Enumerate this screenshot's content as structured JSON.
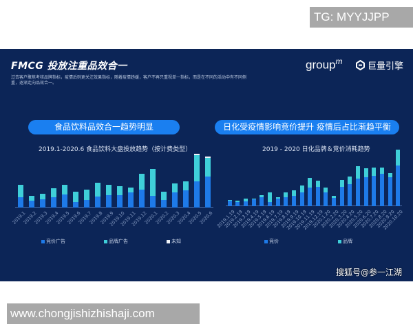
{
  "watermarks": {
    "top": "TG: MYYJJPP",
    "bottom": "www.chongjishizhishaji.com",
    "sohu": "搜狐号@参一江湖"
  },
  "slide": {
    "title": "FMCG 投放注重品效合一",
    "description": "过去客户聚焦考核品牌指标，疫情后则更关注效果指标，随着疫情趋缓，客户不再只重视单一指标，而是在不同的活动中有不同侧重，逐渐走向品效合一。",
    "logos": {
      "groupm": "group",
      "groupm_sup": "m",
      "juliang": "巨量引擎"
    }
  },
  "colors": {
    "background": "#0c2557",
    "bid": "#1e7ae8",
    "brand": "#3fcfd9",
    "unknown": "#f0f4fa",
    "pill": "#1a7ff0"
  },
  "chart_data": [
    {
      "type": "bar",
      "stacked": true,
      "headline": "食品饮料品效合一趋势明显",
      "title": "2019.1-2020.6 食品饮料大盘投放趋势（按计费类型）",
      "xlabel": "",
      "ylabel": "",
      "grid": false,
      "legend_position": "bottom",
      "categories": [
        "2019.1",
        "2019.2",
        "2019.3",
        "2019.4",
        "2019.5",
        "2019.6",
        "2019.7",
        "2019.8",
        "2019.9",
        "2019.10",
        "2019.11",
        "2019.12",
        "2020.1",
        "2020.2",
        "2020.3",
        "2020.4",
        "2020.5",
        "2020.6"
      ],
      "series": [
        {
          "name": "竞价广告",
          "values": [
            15,
            10,
            12,
            15,
            19,
            8,
            11,
            16,
            18,
            18,
            22,
            26,
            17,
            11,
            22,
            25,
            38,
            45
          ]
        },
        {
          "name": "品牌广告",
          "values": [
            18,
            7,
            8,
            13,
            14,
            15,
            15,
            20,
            15,
            13,
            7,
            23,
            39,
            12,
            13,
            13,
            38,
            27
          ]
        },
        {
          "name": "未知",
          "values": [
            0,
            0,
            0,
            0,
            0,
            0,
            0,
            0,
            0,
            0,
            0,
            0,
            0,
            0,
            0,
            0,
            2,
            2
          ]
        }
      ]
    },
    {
      "type": "bar",
      "stacked": true,
      "headline": "日化受疫情影响竞价提升 疫情后占比渐趋平衡",
      "title": "2019 - 2020 日化品牌＆竞价消耗趋势",
      "xlabel": "",
      "ylabel": "",
      "grid": false,
      "legend_position": "bottom",
      "categories": [
        "2019.1.19",
        "2019.2.19",
        "2019.3.19",
        "2019.4.19",
        "2019.5.19",
        "2019.6.19",
        "2019.7.19",
        "2019.8.19",
        "2019.9.19",
        "2019.10.19",
        "2019.11.19",
        "2019.12.19",
        "2020.1.20",
        "2020.2.20",
        "2020.3.20",
        "2020.4.20",
        "2020.5.20",
        "2020.6.20",
        "2020.7.20",
        "2020.8.20",
        "2020.9.20",
        "2020.10.20"
      ],
      "series": [
        {
          "name": "竞价",
          "values": [
            8,
            6,
            7,
            10,
            13,
            6,
            11,
            13,
            15,
            20,
            27,
            28,
            20,
            12,
            28,
            32,
            40,
            42,
            44,
            47,
            42,
            59
          ]
        },
        {
          "name": "品牌",
          "values": [
            1,
            2,
            4,
            1,
            3,
            14,
            2,
            7,
            8,
            10,
            14,
            9,
            7,
            3,
            10,
            11,
            18,
            13,
            12,
            9,
            6,
            23
          ]
        }
      ]
    }
  ]
}
